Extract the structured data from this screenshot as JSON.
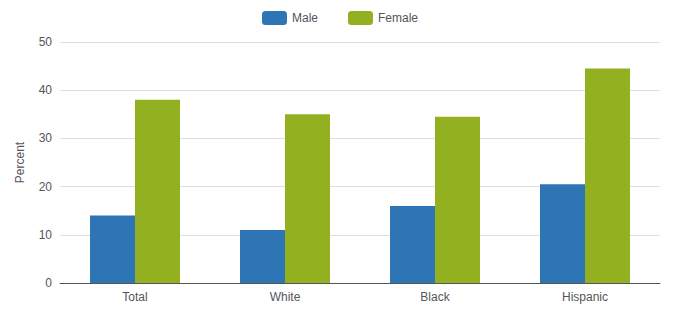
{
  "chart_data": {
    "type": "bar",
    "categories": [
      "Total",
      "White",
      "Black",
      "Hispanic"
    ],
    "series": [
      {
        "name": "Male",
        "color": "#2E75B6",
        "values": [
          14,
          11,
          16,
          20.5
        ]
      },
      {
        "name": "Female",
        "color": "#92B020",
        "values": [
          38,
          35,
          34.5,
          44.5
        ]
      }
    ],
    "ylabel": "Percent",
    "ylim": [
      0,
      50
    ],
    "yticks": [
      0,
      10,
      20,
      30,
      40,
      50
    ],
    "grid": true,
    "legend": "top"
  }
}
